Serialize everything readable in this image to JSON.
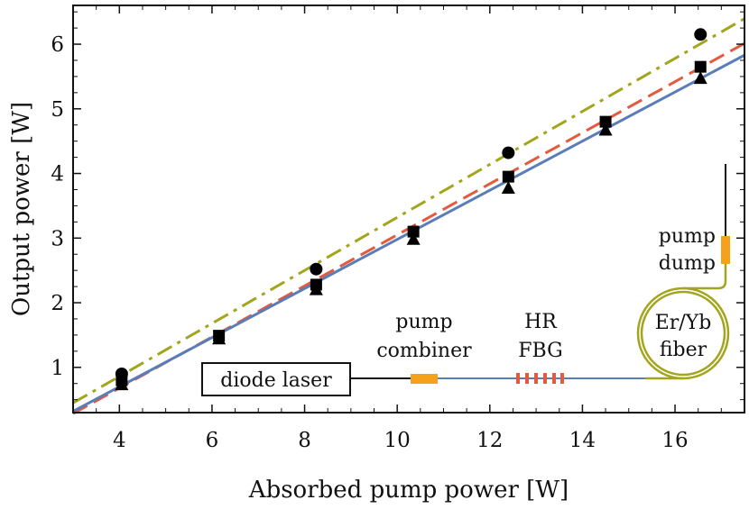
{
  "chart_data": {
    "type": "scatter",
    "title": "",
    "xlabel": "Absorbed pump power [W]",
    "ylabel": "Output power [W]",
    "xlim": [
      3,
      17.5
    ],
    "ylim": [
      0.3,
      6.6
    ],
    "xticks": [
      4,
      6,
      8,
      10,
      12,
      14,
      16
    ],
    "yticks": [
      1,
      2,
      3,
      4,
      5,
      6
    ],
    "grid": false,
    "series": [
      {
        "name": "circles",
        "marker": "circle",
        "x": [
          4.05,
          8.25,
          12.4,
          16.55
        ],
        "y": [
          0.9,
          2.52,
          4.32,
          6.15
        ],
        "fit": {
          "slope": 0.41,
          "intercept": -0.78,
          "color": "#a3a51d",
          "dash": "dashdot"
        }
      },
      {
        "name": "squares",
        "marker": "square",
        "x": [
          4.05,
          6.15,
          8.25,
          10.35,
          12.4,
          14.5,
          16.55
        ],
        "y": [
          0.8,
          1.49,
          2.28,
          3.1,
          3.95,
          4.8,
          5.65
        ],
        "fit": {
          "slope": 0.395,
          "intercept": -0.9,
          "color": "#e35a3e",
          "dash": "dashed"
        }
      },
      {
        "name": "triangles",
        "marker": "triangle",
        "x": [
          4.05,
          6.15,
          8.25,
          10.35,
          12.4,
          14.5,
          16.55
        ],
        "y": [
          0.73,
          1.44,
          2.2,
          2.98,
          3.77,
          4.67,
          5.47
        ],
        "fit": {
          "slope": 0.38,
          "intercept": -0.82,
          "color": "#5a7db8",
          "dash": "solid"
        }
      }
    ],
    "inset_colors": {
      "pump_part": "#f5a11c",
      "fbg": "#e35a3e",
      "passive_fiber": "#5a7db8",
      "active_fiber": "#a3a51d",
      "lead": "#111111"
    },
    "annotations": {
      "diode_laser": "diode laser",
      "pump_combiner_line1": "pump",
      "pump_combiner_line2": "combiner",
      "fbg_line1": "HR",
      "fbg_line2": "FBG",
      "fiber_line1": "Er/Yb",
      "fiber_line2": "fiber",
      "dump_line1": "pump",
      "dump_line2": "dump"
    }
  }
}
